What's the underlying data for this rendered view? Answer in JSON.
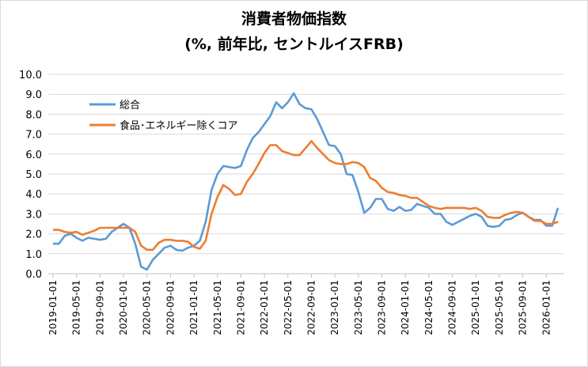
{
  "chart_data": {
    "type": "line",
    "title": "消費者物価指数",
    "subtitle": "(%, 前年比, セントルイスFRB)",
    "xlabel": "",
    "ylabel": "",
    "ylim": [
      0,
      10
    ],
    "yticks": [
      "0.0",
      "1.0",
      "2.0",
      "3.0",
      "4.0",
      "5.0",
      "6.0",
      "7.0",
      "8.0",
      "9.0",
      "10.0"
    ],
    "xtick_labels": [
      "2019-01-01",
      "2019-05-01",
      "2019-09-01",
      "2020-01-01",
      "2020-05-01",
      "2020-09-01",
      "2021-01-01",
      "2021-05-01",
      "2021-09-01",
      "2022-01-01",
      "2022-05-01",
      "2022-09-01",
      "2023-01-01",
      "2023-05-01",
      "2023-09-01",
      "2024-01-01",
      "2024-05-01",
      "2024-09-01",
      "2025-01-01",
      "2025-05-01",
      "2025-09-01",
      "2026-01-01"
    ],
    "x_start": "2019-01-01",
    "x_frequency": "monthly",
    "grid": true,
    "legend_position": "top-left",
    "series": [
      {
        "name": "総合",
        "color": "#5b9bd5",
        "values": [
          1.5,
          1.5,
          1.9,
          2.0,
          1.8,
          1.65,
          1.8,
          1.75,
          1.7,
          1.75,
          2.1,
          2.3,
          2.5,
          2.3,
          1.5,
          0.35,
          0.2,
          0.7,
          1.0,
          1.3,
          1.4,
          1.2,
          1.15,
          1.3,
          1.4,
          1.65,
          2.6,
          4.2,
          5.0,
          5.4,
          5.35,
          5.3,
          5.4,
          6.2,
          6.8,
          7.1,
          7.5,
          7.9,
          8.6,
          8.3,
          8.6,
          9.05,
          8.5,
          8.3,
          8.25,
          7.75,
          7.1,
          6.45,
          6.4,
          6.0,
          5.0,
          4.95,
          4.1,
          3.05,
          3.3,
          3.75,
          3.75,
          3.25,
          3.15,
          3.35,
          3.15,
          3.2,
          3.5,
          3.4,
          3.3,
          3.0,
          3.0,
          2.6,
          2.45,
          2.6,
          2.75,
          2.9,
          3.0,
          2.85,
          2.4,
          2.35,
          2.4,
          2.7,
          2.75,
          2.95,
          3.05,
          2.85,
          2.7,
          2.7,
          2.4,
          2.4,
          3.3
        ]
      },
      {
        "name": "食品･エネルギー除くコア",
        "color": "#ed7d31",
        "values": [
          2.2,
          2.2,
          2.1,
          2.05,
          2.1,
          1.95,
          2.05,
          2.15,
          2.3,
          2.3,
          2.3,
          2.3,
          2.3,
          2.3,
          2.1,
          1.4,
          1.2,
          1.2,
          1.55,
          1.7,
          1.7,
          1.65,
          1.65,
          1.6,
          1.35,
          1.25,
          1.65,
          3.0,
          3.85,
          4.45,
          4.25,
          3.95,
          4.0,
          4.6,
          5.0,
          5.5,
          6.05,
          6.45,
          6.45,
          6.15,
          6.05,
          5.95,
          5.95,
          6.3,
          6.65,
          6.3,
          6.0,
          5.7,
          5.55,
          5.5,
          5.5,
          5.6,
          5.55,
          5.35,
          4.8,
          4.65,
          4.3,
          4.1,
          4.05,
          3.95,
          3.9,
          3.8,
          3.8,
          3.6,
          3.4,
          3.3,
          3.25,
          3.3,
          3.3,
          3.3,
          3.3,
          3.25,
          3.3,
          3.15,
          2.85,
          2.8,
          2.8,
          2.95,
          3.05,
          3.1,
          3.05,
          2.85,
          2.65,
          2.65,
          2.5,
          2.5,
          2.6
        ]
      }
    ]
  }
}
